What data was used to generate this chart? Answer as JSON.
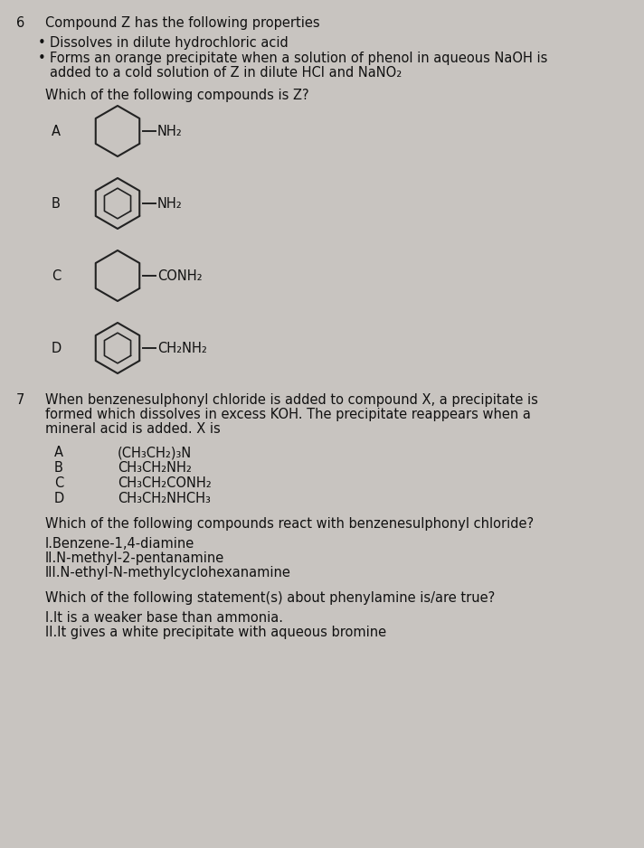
{
  "bg_color": "#c8c4c0",
  "text_color": "#111111",
  "q6_num": "6",
  "title": "Compound Z has the following properties",
  "bullet1": "Dissolves in dilute hydrochloric acid",
  "bullet2a": "Forms an orange precipitate when a solution of phenol in aqueous NaOH is",
  "bullet2b": "added to a cold solution of Z in dilute HCI and NaNO₂",
  "which_z": "Which of the following compounds is Z?",
  "A_label": "A",
  "A_group": "NH₂",
  "B_label": "B",
  "B_group": "NH₂",
  "C_label": "C",
  "C_group": "CONH₂",
  "D_label": "D",
  "D_group": "CH₂NH₂",
  "q7_num": "7",
  "q7_line1": "When benzenesulphonyl chloride is added to compound X, a precipitate is",
  "q7_line2": "formed which dissolves in excess KOH. The precipitate reappears when a",
  "q7_line3": "mineral acid is added. X is",
  "q7_A": "A",
  "q7_Atext": "(CH₃CH₂)₃N",
  "q7_B": "B",
  "q7_Btext": "CH₃CH₂NH₂",
  "q7_C": "C",
  "q7_Ctext": "CH₃CH₂CONH₂",
  "q7_D": "D",
  "q7_Dtext": "CH₃CH₂NHCH₃",
  "q8_text": "Which of the following compounds react with benzenesulphonyl chloride?",
  "q8_I": "I.Benzene-1,4-diamine",
  "q8_II": "II.N-methyl-2-pentanamine",
  "q8_III": "III.N-ethyl-N-methylcyclohexanamine",
  "q9_text": "Which of the following statement(s) about phenylamine is/are true?",
  "q9_I": "I.It is a weaker base than ammonia.",
  "q9_II": "II.It gives a white precipitate with aqueous bromine"
}
